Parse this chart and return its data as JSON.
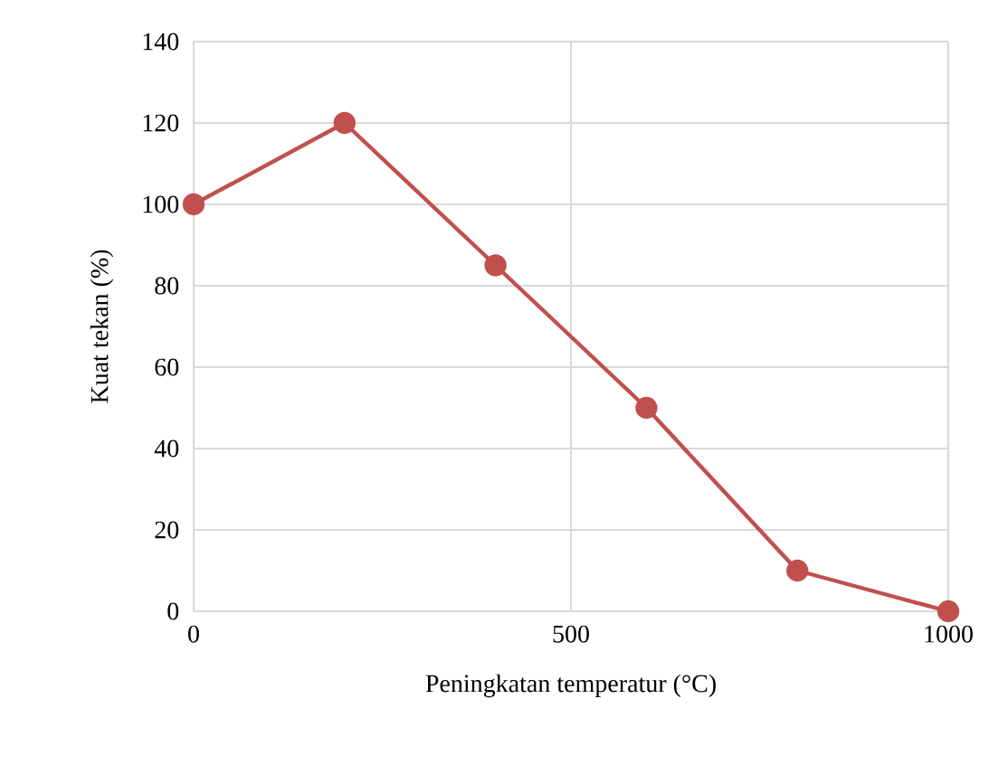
{
  "chart_data": {
    "type": "line",
    "xlabel": "Peningkatan temperatur (°C)",
    "ylabel": "Kuat tekan (%)",
    "x": [
      0,
      200,
      400,
      600,
      800,
      1000
    ],
    "series": [
      {
        "color": "#c0504d",
        "values": [
          100,
          120,
          85,
          50,
          10,
          0
        ]
      }
    ],
    "xlim": [
      0,
      1000
    ],
    "xticks": [
      0,
      500,
      1000
    ],
    "ylim": [
      0,
      140
    ],
    "yticks": [
      0,
      20,
      40,
      60,
      80,
      100,
      120,
      140
    ],
    "grid": true,
    "marker": "circle",
    "line_style": "solid"
  }
}
